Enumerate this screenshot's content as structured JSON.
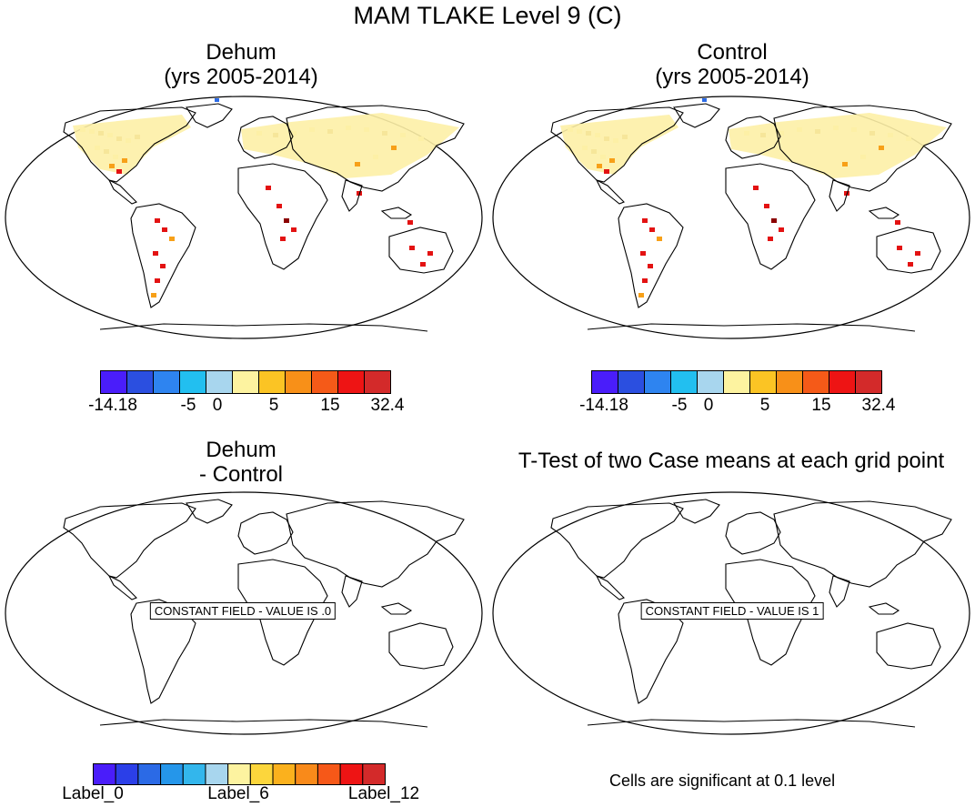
{
  "figure_title": "MAM TLAKE Level 9 (C)",
  "panels": {
    "dehum": {
      "title_line1": "Dehum",
      "title_line2": "(yrs 2005-2014)"
    },
    "control": {
      "title_line1": "Control",
      "title_line2": "(yrs 2005-2014)"
    },
    "diff": {
      "title_line1": "Dehum",
      "title_line2": "- Control",
      "constant_label": "CONSTANT FIELD - VALUE IS .0"
    },
    "ttest": {
      "title": "T-Test of two Case means at each grid point",
      "constant_label": "CONSTANT FIELD - VALUE IS 1",
      "note": "Cells are significant at 0.1 level"
    }
  },
  "colorbar_top": {
    "colors": [
      "#4a1dfa",
      "#2b4fe0",
      "#2e84f0",
      "#22bff0",
      "#a8d6ee",
      "#fdf3a0",
      "#fbc424",
      "#f89018",
      "#f55a18",
      "#ee1414",
      "#d32a2a"
    ],
    "labels": [
      "-14.18",
      "-5",
      "0",
      "5",
      "15",
      "32.4"
    ]
  },
  "colorbar_bottom": {
    "colors": [
      "#4a1dfa",
      "#2b3fe8",
      "#2b6ae6",
      "#2596ea",
      "#33b6ec",
      "#a8d6ee",
      "#fdf3a0",
      "#fcd63c",
      "#fbb11d",
      "#f98a1a",
      "#f65818",
      "#ee1414",
      "#d32a2a"
    ],
    "labels": [
      "Label_0",
      "Label_6",
      "Label_12"
    ]
  },
  "map_colors": {
    "land_fill_pale": "#fdf0a6",
    "land_fill_mid": "#f6e69a",
    "warm_orange": "#f7a018",
    "hot_red": "#e31212",
    "dark_red": "#8b0000",
    "cold_blue": "#2b6ae6"
  },
  "icons": {
    "map_projection": "robinson-world-map-icon"
  }
}
